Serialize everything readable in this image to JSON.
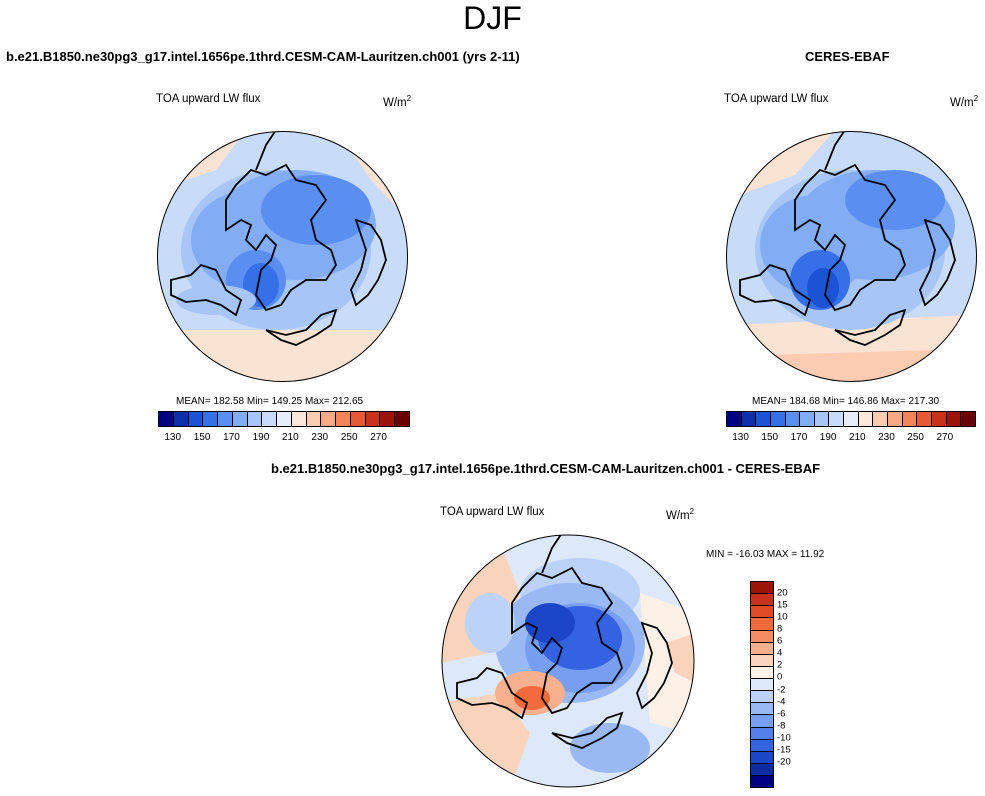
{
  "title": "DJF",
  "panels": [
    {
      "id": "model",
      "title": "b.e21.B1850.ne30pg3_g17.intel.1656pe.1thrd.CESM-CAM-Lauritzen.ch001 (yrs 2-11)",
      "var_label": "TOA upward LW flux",
      "units": "W/m",
      "units_sup": "2",
      "stats": "MEAN= 182.58  Min= 149.25  Max= 212.65"
    },
    {
      "id": "obs",
      "title": "CERES-EBAF",
      "var_label": "TOA upward LW flux",
      "units": "W/m",
      "units_sup": "2",
      "stats": "MEAN= 184.68  Min= 146.86  Max= 217.30"
    },
    {
      "id": "diff",
      "title": "b.e21.B1850.ne30pg3_g17.intel.1656pe.1thrd.CESM-CAM-Lauritzen.ch001 - CERES-EBAF",
      "var_label": "TOA upward LW flux",
      "units": "W/m",
      "units_sup": "2",
      "stats": "MIN = -16.03 MAX =  11.92"
    }
  ],
  "colorbar_abs": {
    "colors": [
      "#000080",
      "#0a2fa8",
      "#1c52d4",
      "#3670e8",
      "#5a8ef0",
      "#82acf4",
      "#a7c6f7",
      "#c8dcfa",
      "#e6eefc",
      "#fde8dc",
      "#fbcbb2",
      "#f8a985",
      "#f4845a",
      "#e85a34",
      "#c8321a",
      "#9c1308",
      "#6b0000"
    ],
    "tick_labels": [
      "130",
      "150",
      "170",
      "190",
      "210",
      "230",
      "250",
      "270"
    ]
  },
  "colorbar_diff": {
    "colors": [
      "#9c1308",
      "#c8321a",
      "#e04a26",
      "#f06a3c",
      "#f58d62",
      "#f8b08e",
      "#fad3bc",
      "#fdf0e6",
      "#dde8fb",
      "#bcd2f8",
      "#9ab9f4",
      "#779ef0",
      "#5580ea",
      "#3562e0",
      "#1c45c8",
      "#0c2aa2",
      "#000080"
    ],
    "tick_labels": [
      "20",
      "15",
      "10",
      "8",
      "6",
      "4",
      "2",
      "0",
      "-2",
      "-4",
      "-6",
      "-8",
      "-10",
      "-15",
      "-20"
    ]
  }
}
